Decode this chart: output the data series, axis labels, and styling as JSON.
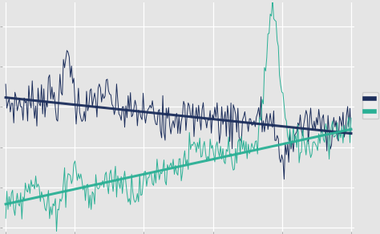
{
  "background_color": "#e5e5e5",
  "plot_bg_color": "#e5e5e5",
  "navy_color": "#1b2d5b",
  "teal_color": "#2ab095",
  "figsize": [
    4.74,
    2.92
  ],
  "dpi": 100,
  "seed": 7,
  "n_points": 300
}
